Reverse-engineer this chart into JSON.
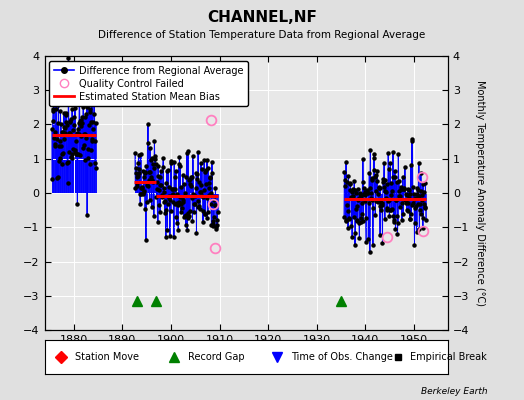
{
  "title": "CHANNEL,NF",
  "subtitle": "Difference of Station Temperature Data from Regional Average",
  "ylabel": "Monthly Temperature Anomaly Difference (°C)",
  "xlim": [
    1874,
    1957
  ],
  "ylim": [
    -4,
    4
  ],
  "xticks": [
    1880,
    1890,
    1900,
    1910,
    1920,
    1930,
    1940,
    1950
  ],
  "yticks": [
    -4,
    -3,
    -2,
    -1,
    0,
    1,
    2,
    3,
    4
  ],
  "bg_color": "#e0e0e0",
  "plot_bg": "#e8e8e8",
  "grid_color": "#ffffff",
  "bias_segments": [
    {
      "xstart": 1875.5,
      "xend": 1884.6,
      "bias": 1.68
    },
    {
      "xstart": 1892.5,
      "xend": 1896.9,
      "bias": 0.33
    },
    {
      "xstart": 1897.0,
      "xend": 1909.6,
      "bias": -0.08
    },
    {
      "xstart": 1935.5,
      "xend": 1952.5,
      "bias": -0.18
    }
  ],
  "record_gaps": [
    1893,
    1897,
    1935
  ],
  "qc_failed": [
    [
      1908.2,
      2.12
    ],
    [
      1908.75,
      -0.32
    ],
    [
      1909.1,
      -1.62
    ],
    [
      1944.5,
      -1.28
    ],
    [
      1951.6,
      0.48
    ],
    [
      1951.9,
      -1.12
    ]
  ],
  "seg1_xstart": 1875.5,
  "seg1_xend": 1884.6,
  "seg1_mean": 1.68,
  "seg1_std": 0.68,
  "seg2_xstart": 1892.6,
  "seg2_xend": 1896.9,
  "seg2_mean": 0.33,
  "seg2_std": 0.65,
  "seg3_xstart": 1897.0,
  "seg3_xend": 1909.6,
  "seg3_mean": -0.08,
  "seg3_std": 0.58,
  "seg4_xstart": 1935.6,
  "seg4_xend": 1952.5,
  "seg4_mean": -0.18,
  "seg4_std": 0.6,
  "seed": 17
}
